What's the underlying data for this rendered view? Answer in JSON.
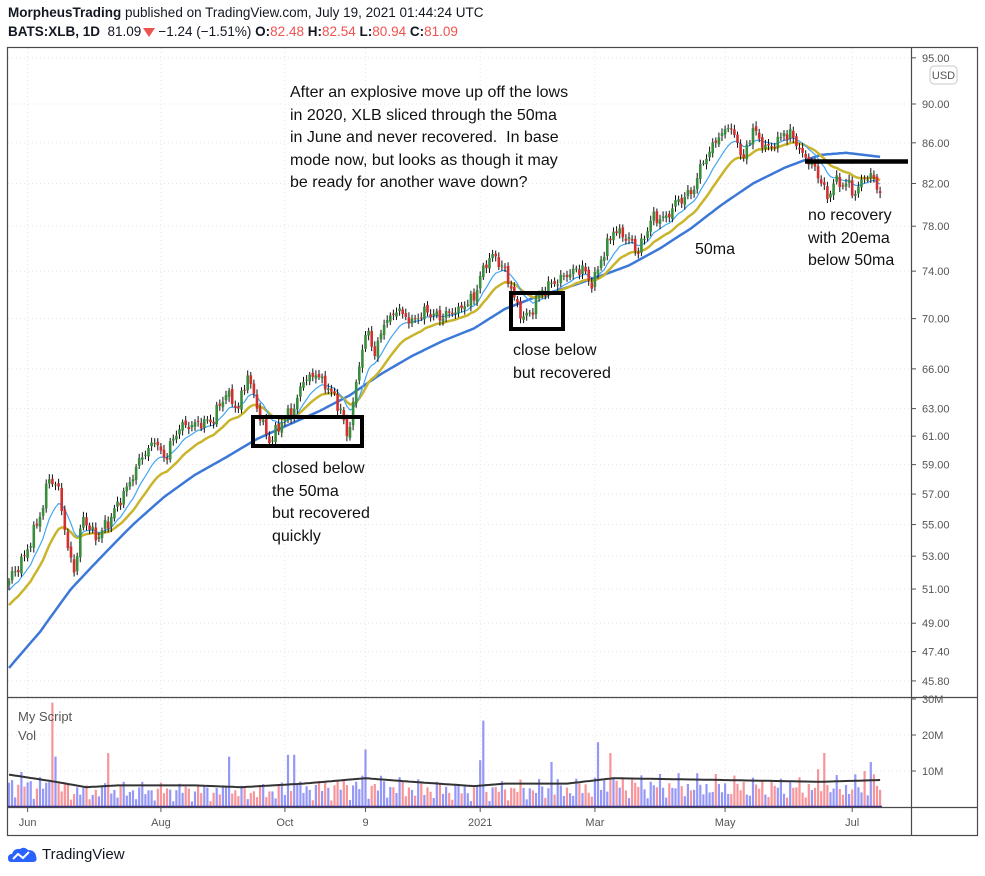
{
  "header": {
    "publisher": "MorpheusTrading",
    "published_text": "published on TradingView.com, July 19, 2021 01:44:24 UTC",
    "symbol": "BATS:XLB, 1D",
    "last": "81.09",
    "change": "−1.24 (−1.51%)",
    "o_label": "O:",
    "o": "82.48",
    "h_label": "H:",
    "h": "82.54",
    "l_label": "L:",
    "l": "80.94",
    "c_label": "C:",
    "c": "81.09"
  },
  "currency_badge": "USD",
  "volume_pane": {
    "title": "My Script",
    "subtitle": "Vol"
  },
  "annotations": {
    "main": "After an explosive move up off the lows\nin 2020, XLB sliced through the 50ma\nin June and never recovered.  In base\nmode now, but looks as though it may\nbe ready for another wave down?",
    "box1": "closed below\nthe 50ma\nbut recovered\nquickly",
    "box2": "close below\nbut recovered",
    "ma_label": "50ma",
    "right": "no recovery\nwith 20ema\nbelow 50ma"
  },
  "footer": {
    "brand": "TradingView"
  },
  "colors": {
    "up": "#388e3c",
    "down": "#d32f2f",
    "vol_up": "#9598f7",
    "vol_down": "#f7959a",
    "ema10": "#42a5f5",
    "ema20": "#c9b52c",
    "sma50": "#3c78d8",
    "vol_ma": "#333333"
  },
  "chart_data": {
    "type": "candlestick",
    "scale": "log",
    "ylim": [
      45.0,
      95.0
    ],
    "price_ticks": [
      "95.00",
      "90.00",
      "86.00",
      "82.00",
      "78.00",
      "74.00",
      "70.00",
      "66.00",
      "63.00",
      "61.00",
      "59.00",
      "57.00",
      "55.00",
      "53.00",
      "51.00",
      "49.00",
      "47.40",
      "45.80"
    ],
    "volume_ticks": [
      "30M",
      "20M",
      "10M"
    ],
    "x_labels": [
      {
        "label": "Jun",
        "index": 6
      },
      {
        "label": "Aug",
        "index": 49
      },
      {
        "label": "Oct",
        "index": 89
      },
      {
        "label": "9",
        "index": 115
      },
      {
        "label": "2021",
        "index": 152
      },
      {
        "label": "Mar",
        "index": 189
      },
      {
        "label": "May",
        "index": 231
      },
      {
        "label": "Jul",
        "index": 272
      }
    ],
    "bar_count": 282,
    "close_keypoints": [
      [
        0,
        51.5
      ],
      [
        5,
        53
      ],
      [
        10,
        55.5
      ],
      [
        13,
        58
      ],
      [
        16,
        57.5
      ],
      [
        19,
        53.5
      ],
      [
        21,
        52
      ],
      [
        24,
        55.5
      ],
      [
        28,
        54
      ],
      [
        33,
        55.5
      ],
      [
        38,
        57.5
      ],
      [
        43,
        59.5
      ],
      [
        47,
        60.5
      ],
      [
        50,
        59.5
      ],
      [
        55,
        61.5
      ],
      [
        60,
        62
      ],
      [
        65,
        62
      ],
      [
        70,
        64
      ],
      [
        74,
        63
      ],
      [
        77,
        65.5
      ],
      [
        80,
        63
      ],
      [
        84,
        60.5
      ],
      [
        88,
        62
      ],
      [
        92,
        63
      ],
      [
        95,
        65
      ],
      [
        99,
        65.5
      ],
      [
        103,
        64.5
      ],
      [
        107,
        63
      ],
      [
        109,
        61
      ],
      [
        111,
        63.5
      ],
      [
        114,
        67.5
      ],
      [
        116,
        69
      ],
      [
        118,
        67
      ],
      [
        121,
        69.5
      ],
      [
        125,
        70.5
      ],
      [
        130,
        70
      ],
      [
        135,
        70.5
      ],
      [
        140,
        70
      ],
      [
        145,
        71
      ],
      [
        150,
        71.5
      ],
      [
        153,
        74.5
      ],
      [
        156,
        75.5
      ],
      [
        159,
        74.5
      ],
      [
        162,
        72.5
      ],
      [
        165,
        70
      ],
      [
        168,
        70.5
      ],
      [
        171,
        72
      ],
      [
        175,
        73
      ],
      [
        180,
        73.5
      ],
      [
        185,
        74.5
      ],
      [
        188,
        72.5
      ],
      [
        191,
        75
      ],
      [
        195,
        77.5
      ],
      [
        200,
        77
      ],
      [
        203,
        75.5
      ],
      [
        207,
        78.5
      ],
      [
        212,
        79
      ],
      [
        216,
        80.5
      ],
      [
        220,
        81
      ],
      [
        224,
        84
      ],
      [
        228,
        86
      ],
      [
        232,
        87.5
      ],
      [
        235,
        86
      ],
      [
        237,
        84.5
      ],
      [
        240,
        87.5
      ],
      [
        243,
        85.5
      ],
      [
        247,
        85.5
      ],
      [
        250,
        87
      ],
      [
        253,
        86.5
      ],
      [
        256,
        85
      ],
      [
        259,
        84
      ],
      [
        262,
        82
      ],
      [
        264,
        80.5
      ],
      [
        266,
        82
      ],
      [
        270,
        82
      ],
      [
        273,
        81
      ],
      [
        276,
        82.5
      ],
      [
        279,
        82.5
      ],
      [
        281,
        81.09
      ]
    ],
    "series": [
      {
        "name": "10ema",
        "start": 50.8
      },
      {
        "name": "20ema",
        "start": 49.9
      },
      {
        "name": "50ma",
        "keypoints": [
          [
            0,
            46.5
          ],
          [
            10,
            48.5
          ],
          [
            20,
            51
          ],
          [
            30,
            53
          ],
          [
            40,
            55
          ],
          [
            50,
            56.8
          ],
          [
            60,
            58.3
          ],
          [
            70,
            59.5
          ],
          [
            80,
            60.8
          ],
          [
            90,
            61.8
          ],
          [
            100,
            62.8
          ],
          [
            110,
            64
          ],
          [
            120,
            65.6
          ],
          [
            130,
            67
          ],
          [
            140,
            68.2
          ],
          [
            150,
            69.2
          ],
          [
            160,
            70.8
          ],
          [
            170,
            71.8
          ],
          [
            180,
            72.6
          ],
          [
            190,
            73.5
          ],
          [
            200,
            74.5
          ],
          [
            210,
            76
          ],
          [
            220,
            77.8
          ],
          [
            230,
            80
          ],
          [
            240,
            82
          ],
          [
            250,
            83.5
          ],
          [
            256,
            84.2
          ],
          [
            262,
            84.8
          ],
          [
            270,
            85.0
          ],
          [
            281,
            84.6
          ]
        ]
      }
    ],
    "volume_ma_keypoints_m": [
      [
        0,
        9
      ],
      [
        15,
        7
      ],
      [
        25,
        5.5
      ],
      [
        35,
        6
      ],
      [
        60,
        6
      ],
      [
        75,
        5.5
      ],
      [
        95,
        6.5
      ],
      [
        115,
        8
      ],
      [
        130,
        7
      ],
      [
        150,
        5.8
      ],
      [
        160,
        6.5
      ],
      [
        180,
        6.5
      ],
      [
        195,
        8
      ],
      [
        230,
        7.5
      ],
      [
        262,
        7
      ],
      [
        281,
        7.5
      ]
    ],
    "volume_spikes_m": [
      [
        14,
        29
      ],
      [
        15,
        14
      ],
      [
        32,
        15
      ],
      [
        71,
        14
      ],
      [
        90,
        14.5
      ],
      [
        92,
        14.5
      ],
      [
        115,
        16
      ],
      [
        152,
        13
      ],
      [
        153,
        24
      ],
      [
        175,
        12.5
      ],
      [
        190,
        18
      ],
      [
        194,
        15
      ],
      [
        263,
        15
      ],
      [
        261,
        10.5
      ],
      [
        278,
        12.5
      ],
      [
        276,
        10
      ]
    ]
  }
}
